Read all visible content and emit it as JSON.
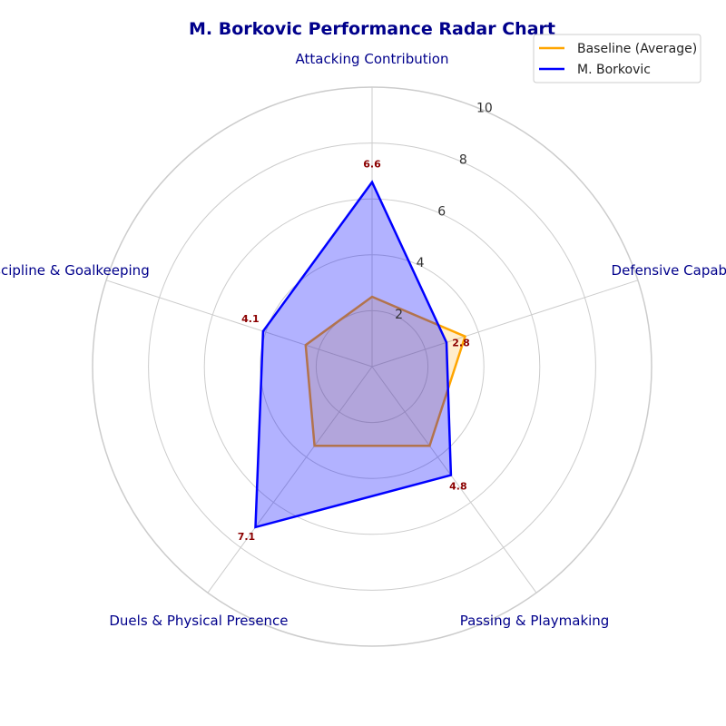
{
  "chart_data": {
    "type": "radar",
    "title": "M. Borkovic Performance Radar Chart",
    "categories": [
      "Attacking Contribution",
      "Defensive Capability",
      "Passing & Playmaking",
      "Duels & Physical Presence",
      "Discipline & Goalkeeping"
    ],
    "rlim": [
      0,
      10
    ],
    "rticks": [
      2,
      4,
      6,
      8,
      10
    ],
    "grid": true,
    "legend_position": "top-right",
    "series": [
      {
        "name": "Baseline (Average)",
        "values": [
          2.5,
          3.5,
          3.5,
          3.5,
          2.5
        ],
        "color": "#ffa500",
        "fill_opacity": 0.2
      },
      {
        "name": "M. Borkovic",
        "values": [
          6.6,
          2.8,
          4.8,
          7.1,
          4.1
        ],
        "color": "#0000ff",
        "fill_opacity": 0.3,
        "show_labels": true
      }
    ]
  }
}
